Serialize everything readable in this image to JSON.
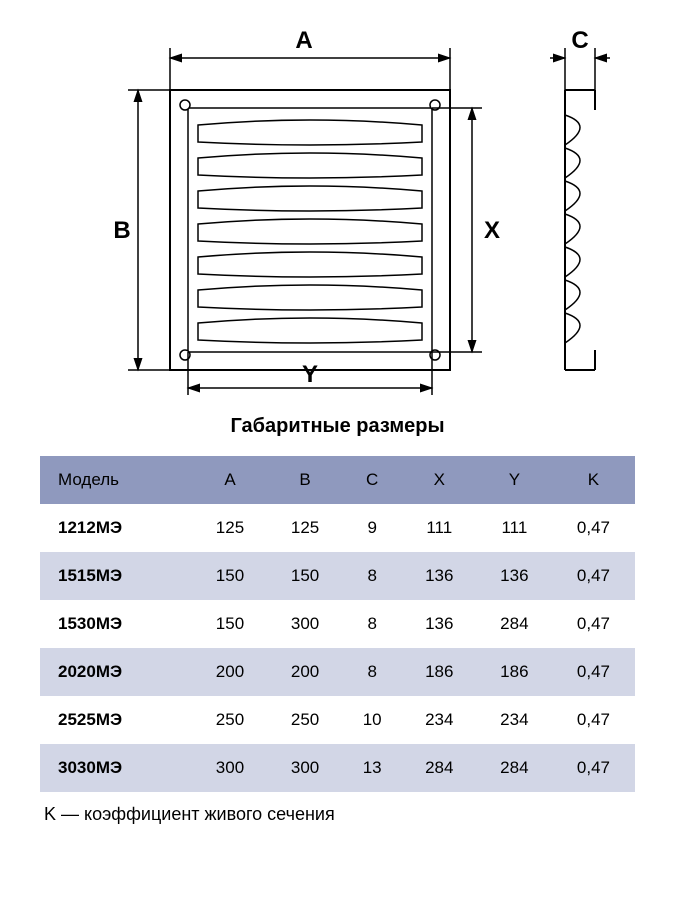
{
  "diagram": {
    "labels": {
      "A": "A",
      "B": "B",
      "C": "C",
      "X": "X",
      "Y": "Y"
    },
    "stroke_color": "#000000",
    "stroke_width": 2,
    "louver_fill": "#ffffff",
    "louver_count": 7,
    "side_louver_count": 7,
    "hole_fill": "#ffffff",
    "font_size": 24,
    "font_weight": "bold"
  },
  "table": {
    "title": "Габаритные размеры",
    "title_fontsize": 20,
    "header_bg": "#8f99be",
    "row_bg_even": "#d2d6e6",
    "row_bg_odd": "#ffffff",
    "text_color": "#000000",
    "cell_fontsize": 17,
    "columns": [
      "Модель",
      "A",
      "B",
      "C",
      "X",
      "Y",
      "K"
    ],
    "rows": [
      [
        "1212МЭ",
        "125",
        "125",
        "9",
        "111",
        "111",
        "0,47"
      ],
      [
        "1515МЭ",
        "150",
        "150",
        "8",
        "136",
        "136",
        "0,47"
      ],
      [
        "1530МЭ",
        "150",
        "300",
        "8",
        "136",
        "284",
        "0,47"
      ],
      [
        "2020МЭ",
        "200",
        "200",
        "8",
        "186",
        "186",
        "0,47"
      ],
      [
        "2525МЭ",
        "250",
        "250",
        "10",
        "234",
        "234",
        "0,47"
      ],
      [
        "3030МЭ",
        "300",
        "300",
        "13",
        "284",
        "284",
        "0,47"
      ]
    ]
  },
  "footnote": "K — коэффициент живого сечения"
}
